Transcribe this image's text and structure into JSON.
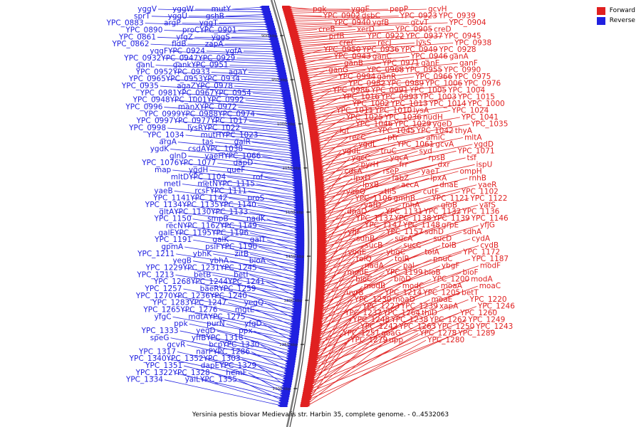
{
  "caption": "Yersinia pestis biovar Medievalis str. Harbin 35, complete genome. - 0..4532063",
  "legend": [
    {
      "label": "Forward",
      "color": "#e02020"
    },
    {
      "label": "Reverse",
      "color": "#2020e0"
    }
  ],
  "colors": {
    "forward": "#e02020",
    "reverse": "#2020e0",
    "backbone": "#777777"
  },
  "ticks": [
    "900 kbp",
    "950 kbp",
    "1000 kbp",
    "1050 kbp",
    "1100 kbp",
    "1150 kbp",
    "1200 kbp",
    "1250 kbp",
    "1300 kbp"
  ],
  "forward_labels": [
    "pgk",
    "yggE",
    "pepP",
    "gcvH",
    "YPC_0902",
    "dsbC",
    "YPC_0923",
    "YPC_0939",
    "YPC_0940",
    "ygfB",
    "gcvT",
    "YPC_0904",
    "creB",
    "xerD",
    "YPC_0905",
    "creD",
    "prfB",
    "YPC_0922",
    "YPC_0937",
    "YPC_0945",
    "creC",
    "recJ",
    "lysS",
    "YPC_0938",
    "YPC_0950",
    "YPC_0936",
    "YPC_0949",
    "YPC_0928",
    "YPC_0943",
    "ganC",
    "YPC_0946",
    "ganA",
    "ganB",
    "YPC_0971",
    "ganE",
    "ganF",
    "ganG",
    "YPC_0968",
    "YPC_0955",
    "YPC_0990",
    "YPC_0994",
    "ganR",
    "YPC_0966",
    "YPC_0975",
    "YPC_0982",
    "YPC_0989",
    "YPC_1006",
    "YPC_0976",
    "YPC_0986",
    "YPC_0991",
    "YPC_1005",
    "YPC_1004",
    "YPC_1016",
    "YPC_0993",
    "YPC_1003",
    "YPC_1015",
    "YPC_1002",
    "YPC_1013",
    "YPC_1014",
    "YPC_1000",
    "YPC_1011",
    "YPC_1010",
    "lysA",
    "YPC_1024",
    "YPC_1025",
    "YPC_1036",
    "nudH",
    "YPC_1041",
    "YPC_1046",
    "YPC_1029",
    "ygeD",
    "YPC_1035",
    "lgt",
    "YPC_1045",
    "YPC_1042",
    "thyA",
    "recC",
    "ptr",
    "amiC",
    "mltA",
    "ygdL",
    "YPC_1061",
    "gcvA",
    "ygdD",
    "ygdE",
    "truC",
    "syd",
    "YPC_1071",
    "yqcC",
    "yqcA",
    "rpsB",
    "tsf",
    "pyrH",
    "frr",
    "dxr",
    "ispU",
    "cdsA",
    "rseP",
    "yaeT",
    "ompH",
    "lpxD",
    "fabZ",
    "lpxA",
    "rnhB",
    "lpxB",
    "accA",
    "dnaE",
    "yaeR",
    "yaeQ",
    "tilS",
    "cutF",
    "YPC_1102",
    "YPC_1106",
    "gmhB",
    "YPC_1121",
    "YPC_1122",
    "yafD",
    "rnhA",
    "gloB",
    "yafS",
    "dnaQ",
    "YPC_1131",
    "YPC_1132",
    "YPC_1136",
    "YPC_1137",
    "YPC_1138",
    "YPC_1139",
    "YPC_1146",
    "YPC_1147",
    "YPC_1148",
    "grpE",
    "yfjG",
    "yfjF",
    "YPC_1157",
    "sdhD",
    "sdhA",
    "sdhB",
    "sucA",
    "sucD",
    "cydA",
    "sucB",
    "sucC",
    "tolB",
    "cydB",
    "ybgE",
    "ybgC",
    "tolA",
    "YPC_1172",
    "tolQ",
    "tolR",
    "pnuC",
    "YPC_1187",
    "nadA",
    "pal",
    "ybgF",
    "modF",
    "modE",
    "YPC_1199",
    "bioB",
    "bioF",
    "bioC",
    "bioD",
    "YPC_1200",
    "modA",
    "modB",
    "modC",
    "moaA",
    "moaC",
    "uvrB",
    "YPC_1214",
    "YPC_1205",
    "betT",
    "YPC_1230",
    "moaD",
    "moaE",
    "YPC_1220",
    "YPC_1223",
    "YPC_1239",
    "xapA",
    "YPC_1246",
    "YPC_1237",
    "YPC_1264",
    "thiD",
    "YPC_1260",
    "YPC_1248",
    "YPC_1238",
    "YPC_1262",
    "YPC_1249",
    "YPC_1242",
    "YPC_1263",
    "YPC_1250",
    "YPC_1243",
    "YPC_1251",
    "goaG",
    "YPC_1278",
    "YPC_1289",
    "YPC_1279",
    "upp",
    "YPC_1280"
  ],
  "reverse_labels": [
    "mutY",
    "yggW",
    "yggV",
    "gshB",
    "yggU",
    "sprT",
    "yggT",
    "argP",
    "YPC_0883",
    "YPC_0901",
    "proC",
    "YPC_0890",
    "yggS",
    "yfgZ",
    "YPC_0861",
    "zapA",
    "fldB",
    "YPC_0862",
    "ygfA",
    "YPC_0924",
    "yqgF",
    "YPC_0929",
    "YPC_0947",
    "YPC_0932",
    "YPC_0951",
    "gank",
    "ganL",
    "agaY",
    "YPC_0933",
    "YPC_0952",
    "YPC_0934",
    "YPC_0953",
    "YPC_0965",
    "YPC_0978",
    "agaZ",
    "YPC_0935",
    "YPC_0954",
    "YPC_0967",
    "YPC_0981",
    "YPC_0992",
    "YPC_1001",
    "YPC_0948",
    "YPC_0972",
    "manX",
    "YPC_0996",
    "YPC_0974",
    "YPC_0988",
    "YPC_0999",
    "YPC_1017",
    "YPC_0977",
    "YPC_0997",
    "YPC_1022",
    "lysR",
    "YPC_0998",
    "YPC_1023",
    "mutH",
    "YPC_1034",
    "galR",
    "tas",
    "argA",
    "YPC_1038",
    "csdA",
    "ygdK",
    "YPC_1066",
    "yaeH",
    "glnD",
    "dapD",
    "YPC_1077",
    "YPC_1076",
    "queF",
    "ygdH",
    "map",
    "rof",
    "YPC_1104",
    "mltD",
    "YPC_1115",
    "metN",
    "metI",
    "YPC_1111",
    "rcsF",
    "yaeB",
    "proS",
    "YPC_1142",
    "YPC_1141",
    "YPC_1140",
    "YPC_1135",
    "YPC_1134",
    "YPC_1133",
    "YPC_1130",
    "gltA",
    "nadK",
    "smpB",
    "YPC_1150",
    "YPC_1149",
    "YPC_1162",
    "recN",
    "YPC_1196",
    "YPC_1195",
    "galE",
    "galT",
    "galK",
    "YPC_1191",
    "YPC_1190",
    "psiF",
    "gpmA",
    "zitB",
    "ybhK",
    "YPC_1211",
    "bioA",
    "ybhA",
    "yegB",
    "YPC_1245",
    "YPC_1231",
    "YPC_1229",
    "betI",
    "betB",
    "YPC_1213",
    "YPC_1241",
    "YPC_1244",
    "YPC_1268",
    "YPC_1259",
    "baeR",
    "YPC_1257",
    "YPC_1240",
    "YPC_1236",
    "YPC_1270",
    "yegQ",
    "YPC_1247",
    "YPC_1283",
    "mgtE",
    "YPC_1276",
    "YPC_1265",
    "YPC_1275",
    "mdtA",
    "yfgC",
    "yfgD",
    "purN",
    "ppk",
    "ppx",
    "yegD",
    "YPC_1333",
    "YPC_1318",
    "yffB",
    "speG",
    "YPC_1330",
    "bcp",
    "gcvR",
    "YPC_1286",
    "narP",
    "YPC_1317",
    "YPC_1303",
    "YPC_1352",
    "YPC_1340",
    "YPC_1329",
    "dapE",
    "YPC_1351",
    "hemF",
    "YPC_1328",
    "YPC_1322",
    "YPC_1355",
    "yaiL",
    "YPC_1334"
  ]
}
